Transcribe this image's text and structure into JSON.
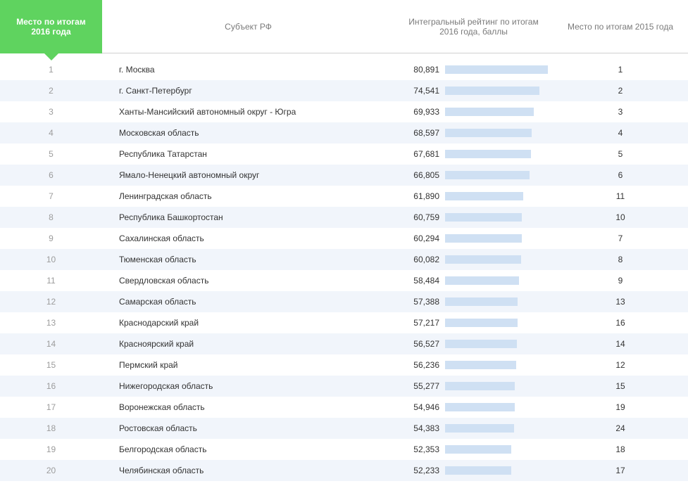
{
  "columns": {
    "rank2016": "Место по итогам 2016 года",
    "subject": "Субъект РФ",
    "score": "Интегральный рейтинг по итогам 2016 года, баллы",
    "rank2015": "Место по итогам 2015 года"
  },
  "style": {
    "active_header_bg": "#5fd35f",
    "active_header_text": "#ffffff",
    "header_text": "#7a7a7a",
    "row_even_bg": "#ffffff",
    "row_odd_bg": "#f1f5fb",
    "bar_fill": "#cfe0f3",
    "rank_muted": "#9c9c9c",
    "text_main": "#333333",
    "bar_max_value": 85
  },
  "rows": [
    {
      "rank2016": 1,
      "subject": "г. Москва",
      "score": "80,891",
      "score_num": 80.891,
      "rank2015": 1
    },
    {
      "rank2016": 2,
      "subject": "г. Санкт-Петербург",
      "score": "74,541",
      "score_num": 74.541,
      "rank2015": 2
    },
    {
      "rank2016": 3,
      "subject": "Ханты-Мансийский автономный округ - Югра",
      "score": "69,933",
      "score_num": 69.933,
      "rank2015": 3
    },
    {
      "rank2016": 4,
      "subject": "Московская область",
      "score": "68,597",
      "score_num": 68.597,
      "rank2015": 4
    },
    {
      "rank2016": 5,
      "subject": "Республика Татарстан",
      "score": "67,681",
      "score_num": 67.681,
      "rank2015": 5
    },
    {
      "rank2016": 6,
      "subject": "Ямало-Ненецкий автономный округ",
      "score": "66,805",
      "score_num": 66.805,
      "rank2015": 6
    },
    {
      "rank2016": 7,
      "subject": "Ленинградская область",
      "score": "61,890",
      "score_num": 61.89,
      "rank2015": 11
    },
    {
      "rank2016": 8,
      "subject": "Республика Башкортостан",
      "score": "60,759",
      "score_num": 60.759,
      "rank2015": 10
    },
    {
      "rank2016": 9,
      "subject": "Сахалинская область",
      "score": "60,294",
      "score_num": 60.294,
      "rank2015": 7
    },
    {
      "rank2016": 10,
      "subject": "Тюменская область",
      "score": "60,082",
      "score_num": 60.082,
      "rank2015": 8
    },
    {
      "rank2016": 11,
      "subject": "Свердловская область",
      "score": "58,484",
      "score_num": 58.484,
      "rank2015": 9
    },
    {
      "rank2016": 12,
      "subject": "Самарская область",
      "score": "57,388",
      "score_num": 57.388,
      "rank2015": 13
    },
    {
      "rank2016": 13,
      "subject": "Краснодарский край",
      "score": "57,217",
      "score_num": 57.217,
      "rank2015": 16
    },
    {
      "rank2016": 14,
      "subject": "Красноярский край",
      "score": "56,527",
      "score_num": 56.527,
      "rank2015": 14
    },
    {
      "rank2016": 15,
      "subject": "Пермский край",
      "score": "56,236",
      "score_num": 56.236,
      "rank2015": 12
    },
    {
      "rank2016": 16,
      "subject": "Нижегородская область",
      "score": "55,277",
      "score_num": 55.277,
      "rank2015": 15
    },
    {
      "rank2016": 17,
      "subject": "Воронежская область",
      "score": "54,946",
      "score_num": 54.946,
      "rank2015": 19
    },
    {
      "rank2016": 18,
      "subject": "Ростовская область",
      "score": "54,383",
      "score_num": 54.383,
      "rank2015": 24
    },
    {
      "rank2016": 19,
      "subject": "Белгородская область",
      "score": "52,353",
      "score_num": 52.353,
      "rank2015": 18
    },
    {
      "rank2016": 20,
      "subject": "Челябинская область",
      "score": "52,233",
      "score_num": 52.233,
      "rank2015": 17
    }
  ]
}
